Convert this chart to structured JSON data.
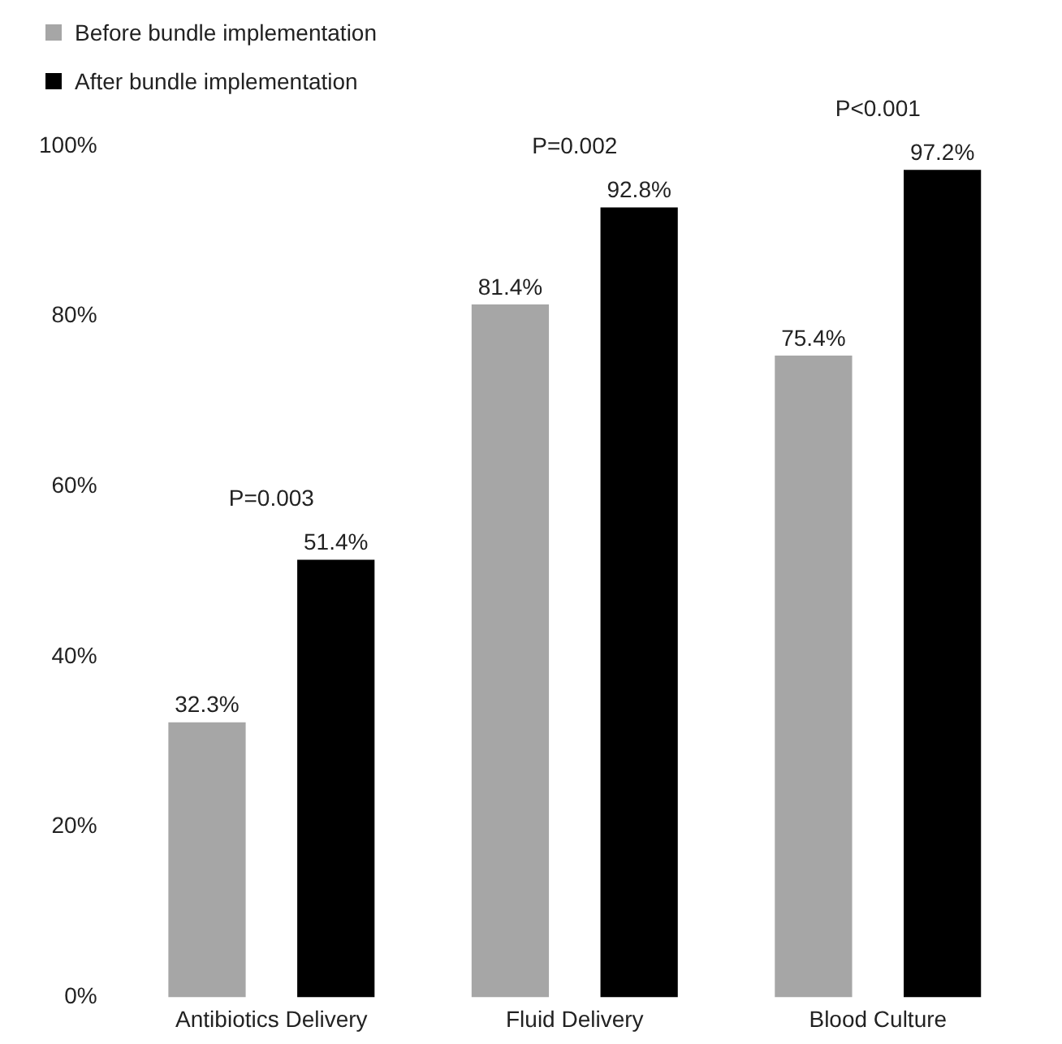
{
  "chart_data": {
    "type": "bar",
    "categories": [
      "Antibiotics Delivery",
      "Fluid Delivery",
      "Blood Culture"
    ],
    "series": [
      {
        "name": "Before bundle implementation",
        "color": "#a6a6a6",
        "values": [
          32.3,
          81.4,
          75.4
        ],
        "value_labels": [
          "32.3%",
          "81.4%",
          "75.4%"
        ]
      },
      {
        "name": "After bundle implementation",
        "color": "#000000",
        "values": [
          51.4,
          92.8,
          97.2
        ],
        "value_labels": [
          "51.4%",
          "92.8%",
          "97.2%"
        ]
      }
    ],
    "ylim": [
      0,
      100
    ],
    "yticks": [
      {
        "value": 0,
        "label": "0%"
      },
      {
        "value": 20,
        "label": "20%"
      },
      {
        "value": 40,
        "label": "40%"
      },
      {
        "value": 60,
        "label": "60%"
      },
      {
        "value": 80,
        "label": "80%"
      },
      {
        "value": 100,
        "label": "100%"
      }
    ],
    "annotations": [
      "P=0.003",
      "P=0.002",
      "P<0.001"
    ],
    "grid": false,
    "legend": "top left"
  }
}
